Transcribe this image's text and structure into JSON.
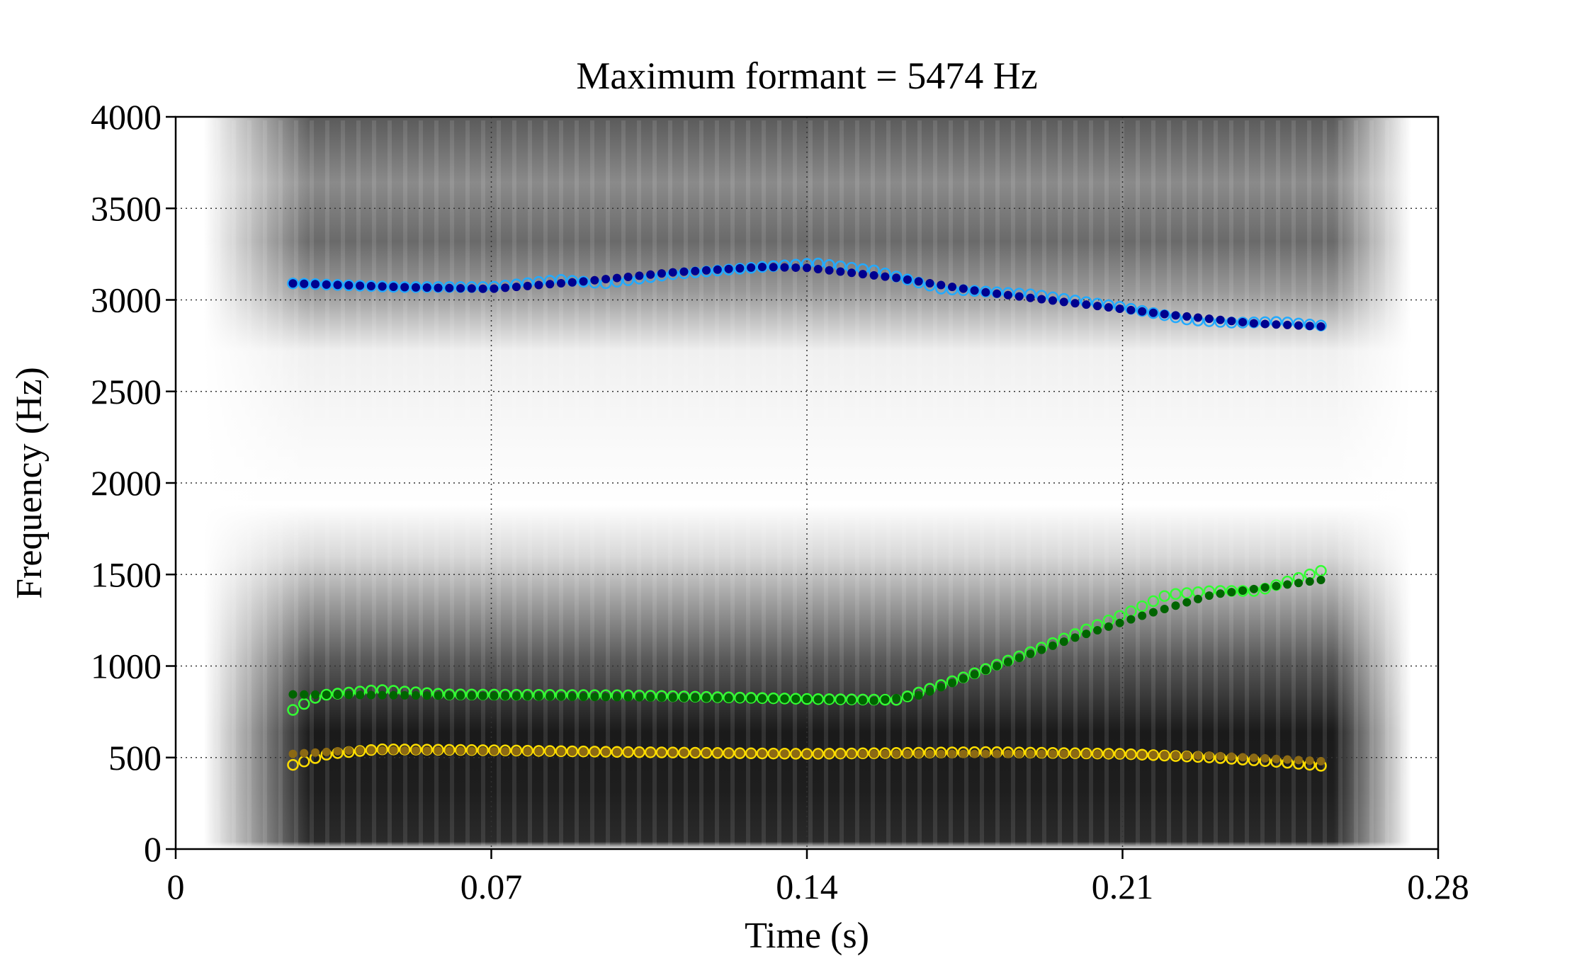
{
  "chart_data": {
    "type": "scatter",
    "title": "Maximum formant = 5474 Hz",
    "xlabel": "Time (s)",
    "ylabel": "Frequency (Hz)",
    "xlim": [
      0,
      0.28
    ],
    "ylim": [
      0,
      4000
    ],
    "x_ticks": [
      "0",
      "0.07",
      "0.14",
      "0.21",
      "0.28"
    ],
    "y_ticks": [
      "0",
      "500",
      "1000",
      "1500",
      "2000",
      "2500",
      "3000",
      "3500",
      "4000"
    ],
    "grid": true,
    "background": "spectrogram (grayscale)",
    "track_time_range": [
      0.026,
      0.254
    ],
    "series": [
      {
        "kind": "formant-track-filled",
        "color": "#00008f",
        "knots": [
          [
            0.026,
            3090
          ],
          [
            0.05,
            3070
          ],
          [
            0.07,
            3060
          ],
          [
            0.09,
            3100
          ],
          [
            0.11,
            3150
          ],
          [
            0.13,
            3180
          ],
          [
            0.14,
            3175
          ],
          [
            0.16,
            3120
          ],
          [
            0.18,
            3040
          ],
          [
            0.2,
            2980
          ],
          [
            0.22,
            2920
          ],
          [
            0.24,
            2870
          ],
          [
            0.254,
            2855
          ]
        ]
      },
      {
        "kind": "formant-track-open",
        "color": "#22aaff",
        "knots": [
          [
            0.026,
            3090
          ],
          [
            0.05,
            3070
          ],
          [
            0.07,
            3070
          ],
          [
            0.085,
            3110
          ],
          [
            0.095,
            3090
          ],
          [
            0.11,
            3140
          ],
          [
            0.13,
            3180
          ],
          [
            0.142,
            3200
          ],
          [
            0.155,
            3160
          ],
          [
            0.17,
            3060
          ],
          [
            0.19,
            3030
          ],
          [
            0.21,
            2960
          ],
          [
            0.225,
            2890
          ],
          [
            0.235,
            2875
          ],
          [
            0.245,
            2880
          ],
          [
            0.254,
            2860
          ]
        ]
      },
      {
        "kind": "formant-track-filled",
        "color": "#006400",
        "knots": [
          [
            0.026,
            845
          ],
          [
            0.05,
            840
          ],
          [
            0.1,
            830
          ],
          [
            0.14,
            820
          ],
          [
            0.155,
            810
          ],
          [
            0.165,
            840
          ],
          [
            0.18,
            980
          ],
          [
            0.2,
            1160
          ],
          [
            0.215,
            1280
          ],
          [
            0.23,
            1390
          ],
          [
            0.254,
            1470
          ]
        ]
      },
      {
        "kind": "formant-track-open",
        "color": "#33ff33",
        "knots": [
          [
            0.026,
            760
          ],
          [
            0.032,
            840
          ],
          [
            0.045,
            870
          ],
          [
            0.06,
            845
          ],
          [
            0.1,
            840
          ],
          [
            0.14,
            820
          ],
          [
            0.16,
            815
          ],
          [
            0.175,
            940
          ],
          [
            0.19,
            1080
          ],
          [
            0.205,
            1230
          ],
          [
            0.212,
            1300
          ],
          [
            0.22,
            1390
          ],
          [
            0.23,
            1410
          ],
          [
            0.24,
            1410
          ],
          [
            0.254,
            1520
          ]
        ]
      },
      {
        "kind": "formant-track-filled",
        "color": "#8b6914",
        "knots": [
          [
            0.026,
            520
          ],
          [
            0.04,
            540
          ],
          [
            0.1,
            530
          ],
          [
            0.14,
            520
          ],
          [
            0.2,
            520
          ],
          [
            0.23,
            510
          ],
          [
            0.254,
            480
          ]
        ]
      },
      {
        "kind": "formant-track-open",
        "color": "#ffdd00",
        "knots": [
          [
            0.026,
            460
          ],
          [
            0.034,
            520
          ],
          [
            0.045,
            545
          ],
          [
            0.07,
            540
          ],
          [
            0.1,
            530
          ],
          [
            0.14,
            520
          ],
          [
            0.18,
            530
          ],
          [
            0.21,
            520
          ],
          [
            0.23,
            500
          ],
          [
            0.245,
            475
          ],
          [
            0.254,
            455
          ]
        ]
      }
    ]
  }
}
